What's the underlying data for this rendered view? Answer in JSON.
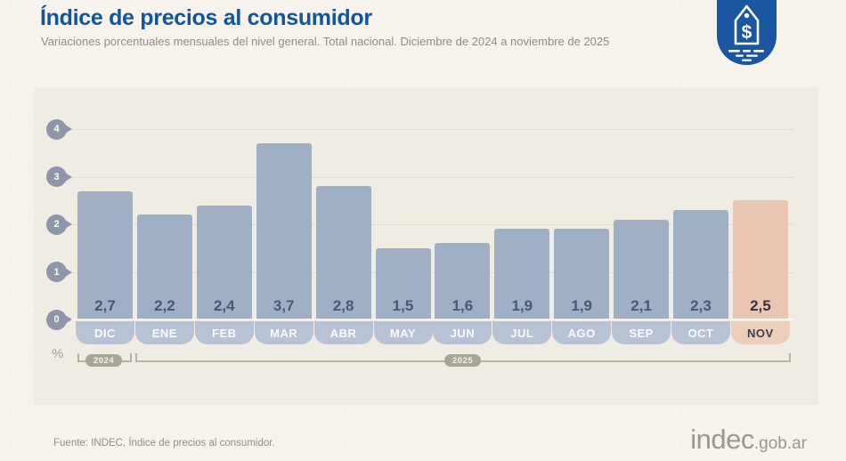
{
  "header": {
    "title": "Índice de precios al consumidor",
    "subtitle": "Variaciones porcentuales mensuales del nivel general. Total nacional. Diciembre de 2024 a noviembre de 2025"
  },
  "chart_data": {
    "type": "bar",
    "categories": [
      "DIC",
      "ENE",
      "FEB",
      "MAR",
      "ABR",
      "MAY",
      "JUN",
      "JUL",
      "AGO",
      "SEP",
      "OCT",
      "NOV"
    ],
    "values": [
      2.7,
      2.2,
      2.4,
      3.7,
      2.8,
      1.5,
      1.6,
      1.9,
      1.9,
      2.1,
      2.3,
      2.5
    ],
    "value_labels": [
      "2,7",
      "2,2",
      "2,4",
      "3,7",
      "2,8",
      "1,5",
      "1,6",
      "1,9",
      "1,9",
      "2,1",
      "2,3",
      "2,5"
    ],
    "highlight_index": 11,
    "y_ticks": [
      4,
      3,
      2,
      1,
      0
    ],
    "ylim": [
      0,
      4
    ],
    "unit_label": "%",
    "legend_position": "none",
    "grid": true,
    "year_groups": [
      {
        "label": "2024",
        "from": "DIC",
        "to": "DIC"
      },
      {
        "label": "2025",
        "from": "ENE",
        "to": "NOV"
      }
    ],
    "colors": {
      "bar": "#9fb0c4",
      "bar_highlight": "#e9c7b2",
      "month_tab": "#b7c3d4",
      "month_tab_highlight": "#edceba",
      "value_text": "#485877",
      "value_text_highlight": "#3a3443",
      "tab_text_highlight": "#3f3b52"
    }
  },
  "footer": {
    "source": "Fuente: INDEC, Índice de precios al consumidor.",
    "logo_main": "indec",
    "logo_suffix": ".gob.ar"
  }
}
